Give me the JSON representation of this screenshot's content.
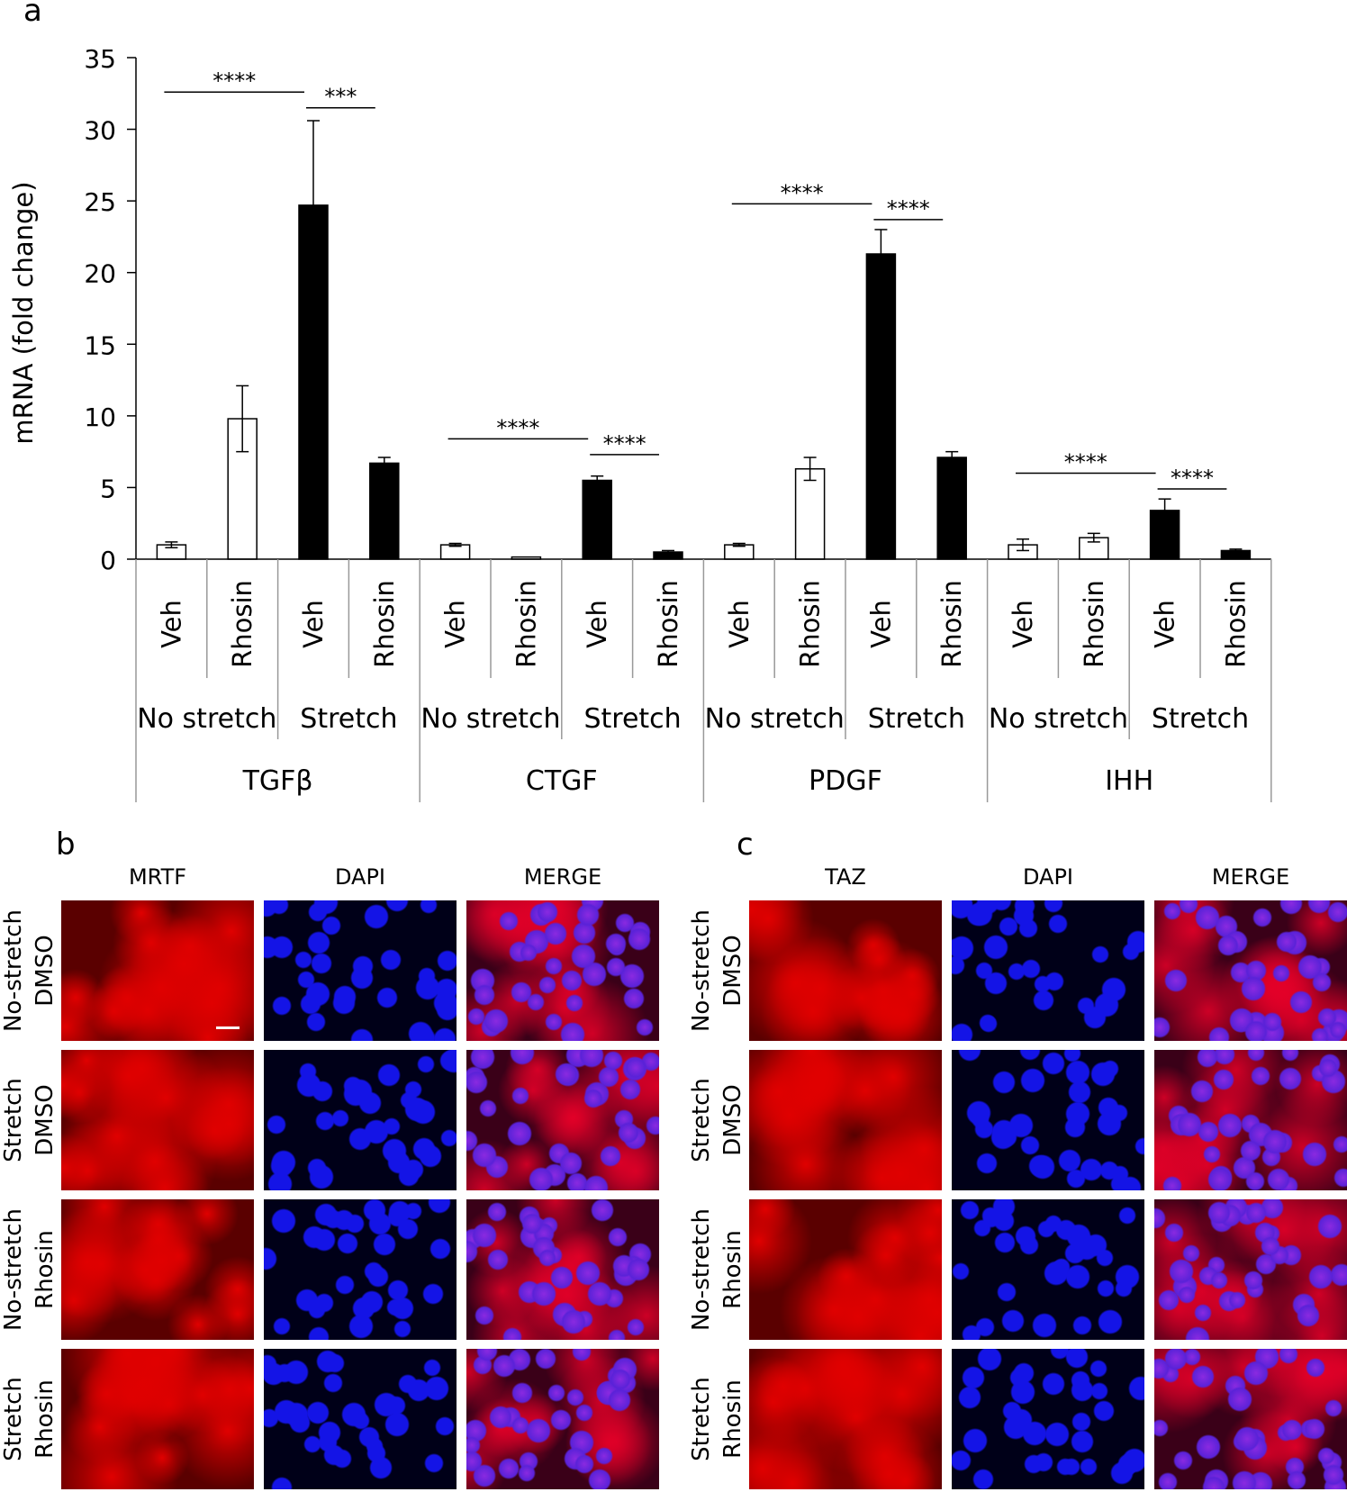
{
  "panels": {
    "a": "a",
    "b": "b",
    "c": "c"
  },
  "chart_data": {
    "type": "bar",
    "ylabel": "mRNA (fold change)",
    "ylim": [
      0,
      35
    ],
    "yticks": [
      0,
      5,
      10,
      15,
      20,
      25,
      30,
      35
    ],
    "grid": false,
    "fill_colors": {
      "No stretch": "#ffffff",
      "Stretch": "#000000"
    },
    "groups": [
      {
        "gene": "TGFβ",
        "bars": [
          {
            "treatment": "Veh",
            "condition": "No stretch",
            "value": 1.0,
            "err": 0.2
          },
          {
            "treatment": "Rhosin",
            "condition": "No stretch",
            "value": 9.8,
            "err": 2.3
          },
          {
            "treatment": "Veh",
            "condition": "Stretch",
            "value": 24.7,
            "err": 5.9
          },
          {
            "treatment": "Rhosin",
            "condition": "Stretch",
            "value": 6.7,
            "err": 0.4
          }
        ]
      },
      {
        "gene": "CTGF",
        "bars": [
          {
            "treatment": "Veh",
            "condition": "No stretch",
            "value": 1.0,
            "err": 0.1
          },
          {
            "treatment": "Rhosin",
            "condition": "No stretch",
            "value": 0.15,
            "err": 0.0
          },
          {
            "treatment": "Veh",
            "condition": "Stretch",
            "value": 5.5,
            "err": 0.3
          },
          {
            "treatment": "Rhosin",
            "condition": "Stretch",
            "value": 0.5,
            "err": 0.1
          }
        ]
      },
      {
        "gene": "PDGF",
        "bars": [
          {
            "treatment": "Veh",
            "condition": "No stretch",
            "value": 1.0,
            "err": 0.1
          },
          {
            "treatment": "Rhosin",
            "condition": "No stretch",
            "value": 6.3,
            "err": 0.8
          },
          {
            "treatment": "Veh",
            "condition": "Stretch",
            "value": 21.3,
            "err": 1.7
          },
          {
            "treatment": "Rhosin",
            "condition": "Stretch",
            "value": 7.1,
            "err": 0.4
          }
        ]
      },
      {
        "gene": "IHH",
        "bars": [
          {
            "treatment": "Veh",
            "condition": "No stretch",
            "value": 1.0,
            "err": 0.4
          },
          {
            "treatment": "Rhosin",
            "condition": "No stretch",
            "value": 1.5,
            "err": 0.3
          },
          {
            "treatment": "Veh",
            "condition": "Stretch",
            "value": 3.4,
            "err": 0.8
          },
          {
            "treatment": "Rhosin",
            "condition": "Stretch",
            "value": 0.6,
            "err": 0.1
          }
        ]
      }
    ],
    "significance": [
      {
        "gene": "TGFβ",
        "from": 0,
        "to": 2,
        "y": 32.6,
        "label": "****"
      },
      {
        "gene": "TGFβ",
        "from": 2,
        "to": 3,
        "y": 31.5,
        "label": "***"
      },
      {
        "gene": "CTGF",
        "from": 0,
        "to": 2,
        "y": 8.4,
        "label": "****"
      },
      {
        "gene": "CTGF",
        "from": 2,
        "to": 3,
        "y": 7.3,
        "label": "****"
      },
      {
        "gene": "PDGF",
        "from": 0,
        "to": 2,
        "y": 24.8,
        "label": "****"
      },
      {
        "gene": "PDGF",
        "from": 2,
        "to": 3,
        "y": 23.7,
        "label": "****"
      },
      {
        "gene": "IHH",
        "from": 0,
        "to": 2,
        "y": 6.0,
        "label": "****"
      },
      {
        "gene": "IHH",
        "from": 2,
        "to": 3,
        "y": 4.9,
        "label": "****"
      }
    ]
  },
  "panel_b": {
    "columns": [
      "MRTF",
      "DAPI",
      "MERGE"
    ],
    "rows": [
      {
        "line1": "No-stretch",
        "line2": "DMSO"
      },
      {
        "line1": "Stretch",
        "line2": "DMSO"
      },
      {
        "line1": "No-stretch",
        "line2": "Rhosin"
      },
      {
        "line1": "Stretch",
        "line2": "Rhosin"
      }
    ]
  },
  "panel_c": {
    "columns": [
      "TAZ",
      "DAPI",
      "MERGE"
    ],
    "rows": [
      {
        "line1": "No-stretch",
        "line2": "DMSO"
      },
      {
        "line1": "Stretch",
        "line2": "DMSO"
      },
      {
        "line1": "No-stretch",
        "line2": "Rhosin"
      },
      {
        "line1": "Stretch",
        "line2": "Rhosin"
      }
    ]
  },
  "micrograph_colors": {
    "red_stain": "#e00000",
    "blue_stain": "#1414e6",
    "background": "#120000"
  }
}
